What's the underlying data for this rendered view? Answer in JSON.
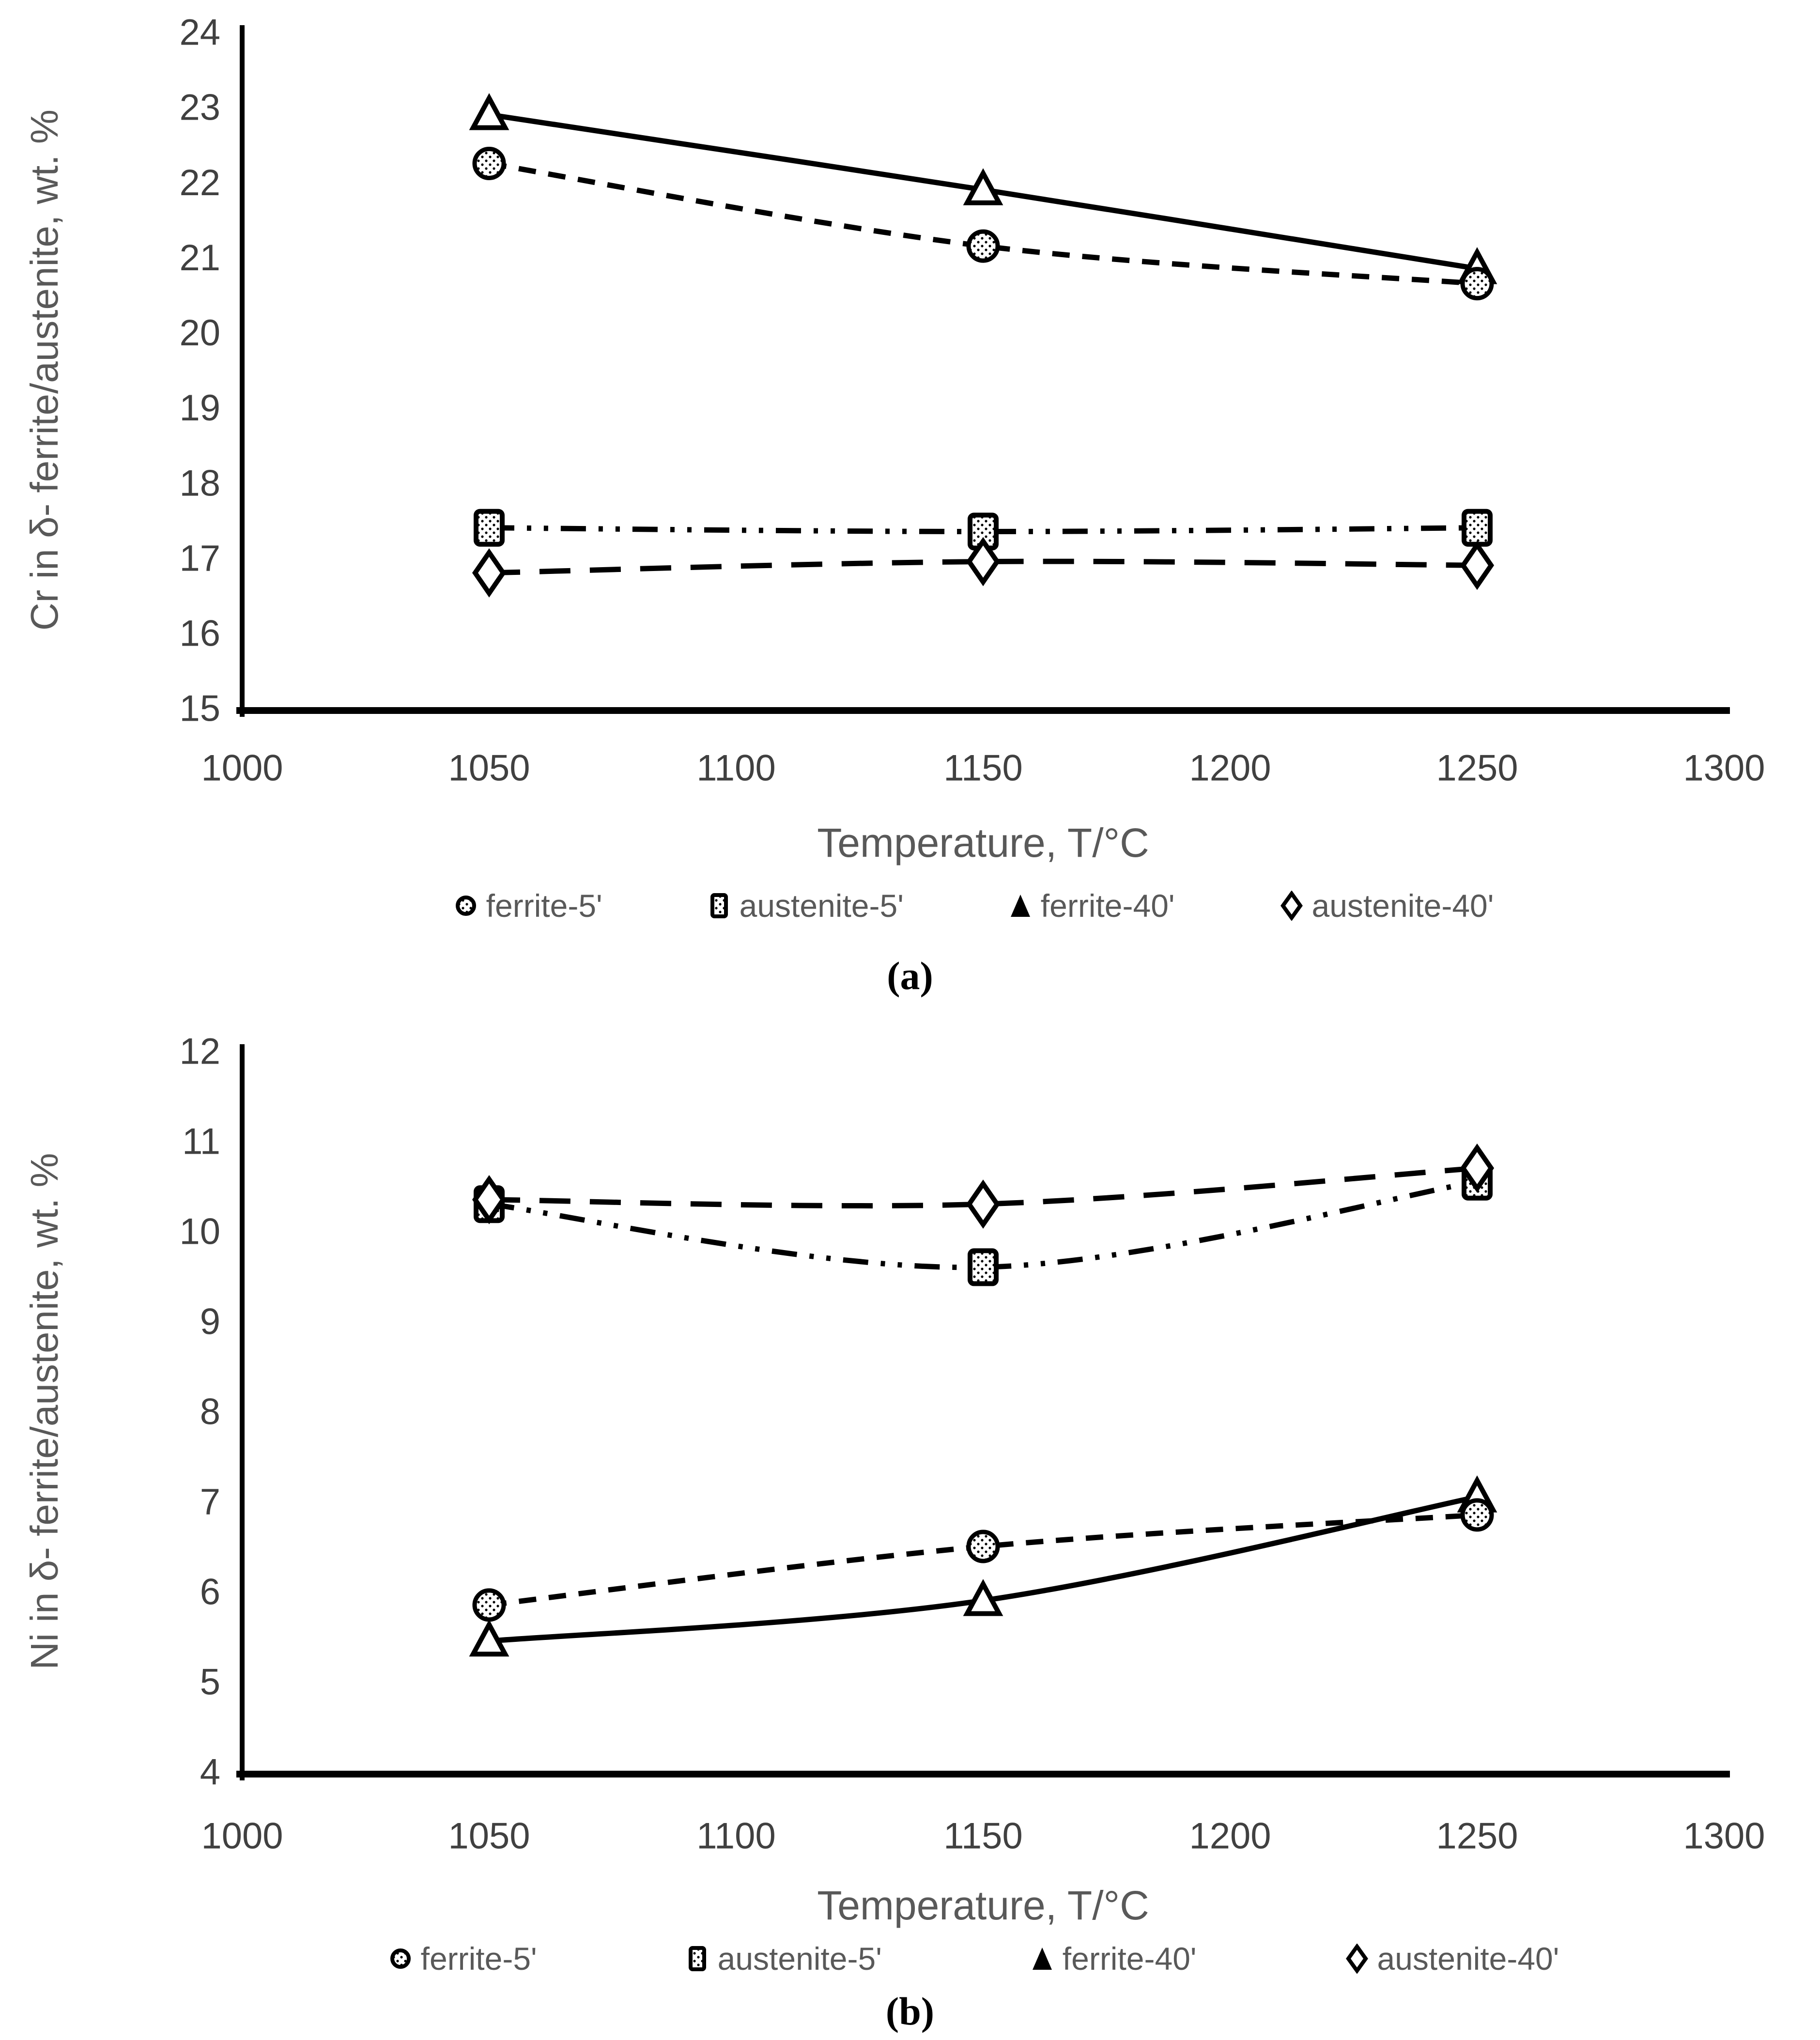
{
  "page": {
    "background": "#ffffff"
  },
  "colors": {
    "axis_line": "#000000",
    "series_line": "#000000",
    "tick_label": "#404040",
    "axis_title": "#595959",
    "legend_label": "#595959",
    "caption": "#000000",
    "marker_fill": "#ffffff"
  },
  "chart_data": [
    {
      "id": "a",
      "type": "line",
      "caption": "(a)",
      "ylabel": "Cr in δ- ferrite/austenite, wt. %",
      "xlabel": "Temperature, T/°C",
      "xlim": [
        1000,
        1300
      ],
      "ylim": [
        15,
        24
      ],
      "x_ticks": [
        1000,
        1050,
        1100,
        1150,
        1200,
        1250,
        1300
      ],
      "y_ticks": [
        15,
        16,
        17,
        18,
        19,
        20,
        21,
        22,
        23,
        24
      ],
      "grid": false,
      "legend_position": "bottom",
      "x": [
        1050,
        1150,
        1250
      ],
      "series": [
        {
          "name": "ferrite-5'",
          "marker": "circle",
          "line": "dashed",
          "values": [
            22.25,
            21.15,
            20.65
          ]
        },
        {
          "name": "austenite-5'",
          "marker": "square",
          "line": "dashdotdot",
          "values": [
            17.4,
            17.35,
            17.4
          ]
        },
        {
          "name": "ferrite-40'",
          "marker": "triangle",
          "line": "solid",
          "values": [
            22.9,
            21.9,
            20.85
          ]
        },
        {
          "name": "austenite-40'",
          "marker": "diamond",
          "line": "longdash",
          "values": [
            16.8,
            16.95,
            16.9
          ]
        }
      ]
    },
    {
      "id": "b",
      "type": "line",
      "caption": "(b)",
      "ylabel": "Ni in δ- ferrite/austenite, wt. %",
      "xlabel": "Temperature, T/°C",
      "xlim": [
        1000,
        1300
      ],
      "ylim": [
        4,
        12
      ],
      "x_ticks": [
        1000,
        1050,
        1100,
        1150,
        1200,
        1250,
        1300
      ],
      "y_ticks": [
        4,
        5,
        6,
        7,
        8,
        9,
        10,
        11,
        12
      ],
      "grid": false,
      "legend_position": "bottom",
      "x": [
        1050,
        1150,
        1250
      ],
      "series": [
        {
          "name": "ferrite-5'",
          "marker": "circle",
          "line": "dashed",
          "values": [
            5.85,
            6.5,
            6.85
          ]
        },
        {
          "name": "austenite-5'",
          "marker": "square",
          "line": "dashdotdot",
          "values": [
            10.3,
            9.6,
            10.55
          ]
        },
        {
          "name": "ferrite-40'",
          "marker": "triangle",
          "line": "solid",
          "values": [
            5.45,
            5.9,
            7.05
          ]
        },
        {
          "name": "austenite-40'",
          "marker": "diamond",
          "line": "longdash",
          "values": [
            10.35,
            10.3,
            10.7
          ]
        }
      ]
    }
  ]
}
